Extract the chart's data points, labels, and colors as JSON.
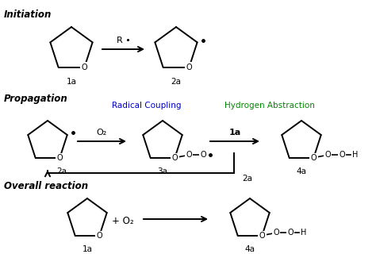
{
  "bg_color": "#ffffff",
  "section_labels": {
    "initiation": "Initiation",
    "propagation": "Propagation",
    "overall": "Overall reaction"
  },
  "radical_coupling_label": "Radical Coupling",
  "hydrogen_abstraction_label": "Hydrogen Abstraction",
  "radical_coupling_color": "#0000cc",
  "hydrogen_abstraction_color": "#008800",
  "compound_labels": [
    "1a",
    "2a",
    "3a",
    "4a"
  ],
  "arrow_color": "#000000",
  "figsize": [
    4.74,
    3.2
  ],
  "dpi": 100
}
